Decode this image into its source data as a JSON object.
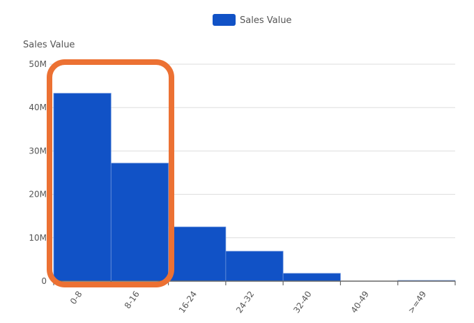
{
  "chart_data": {
    "type": "bar",
    "title": "",
    "xlabel": "",
    "ylabel": "Sales Value",
    "categories": [
      "0-8",
      "8-16",
      "16-24",
      "24-32",
      "32-40",
      "40-49",
      ">=49"
    ],
    "series": [
      {
        "name": "Sales Value",
        "color": "#1152c6",
        "values": [
          43300000,
          27200000,
          12500000,
          6900000,
          1800000,
          0,
          100000
        ]
      }
    ],
    "ylim": [
      0,
      50000000
    ],
    "yticks": [
      0,
      10000000,
      20000000,
      30000000,
      40000000,
      50000000
    ],
    "ytick_labels": [
      "0",
      "10M",
      "20M",
      "30M",
      "40M",
      "50M"
    ],
    "grid": true,
    "legend_position": "top",
    "annotation": {
      "type": "highlight-box",
      "color": "#ec7133",
      "covers_categories": [
        "0-8",
        "8-16"
      ]
    }
  },
  "legend": {
    "label": "Sales Value",
    "color": "#1152c6"
  },
  "y_axis": {
    "title": "Sales Value"
  },
  "colors": {
    "bar": "#1152c6",
    "bar_edge": "#6d94dc",
    "grid": "#dddddd",
    "axis": "#666666",
    "highlight": "#ec7133",
    "text": "#555555"
  }
}
